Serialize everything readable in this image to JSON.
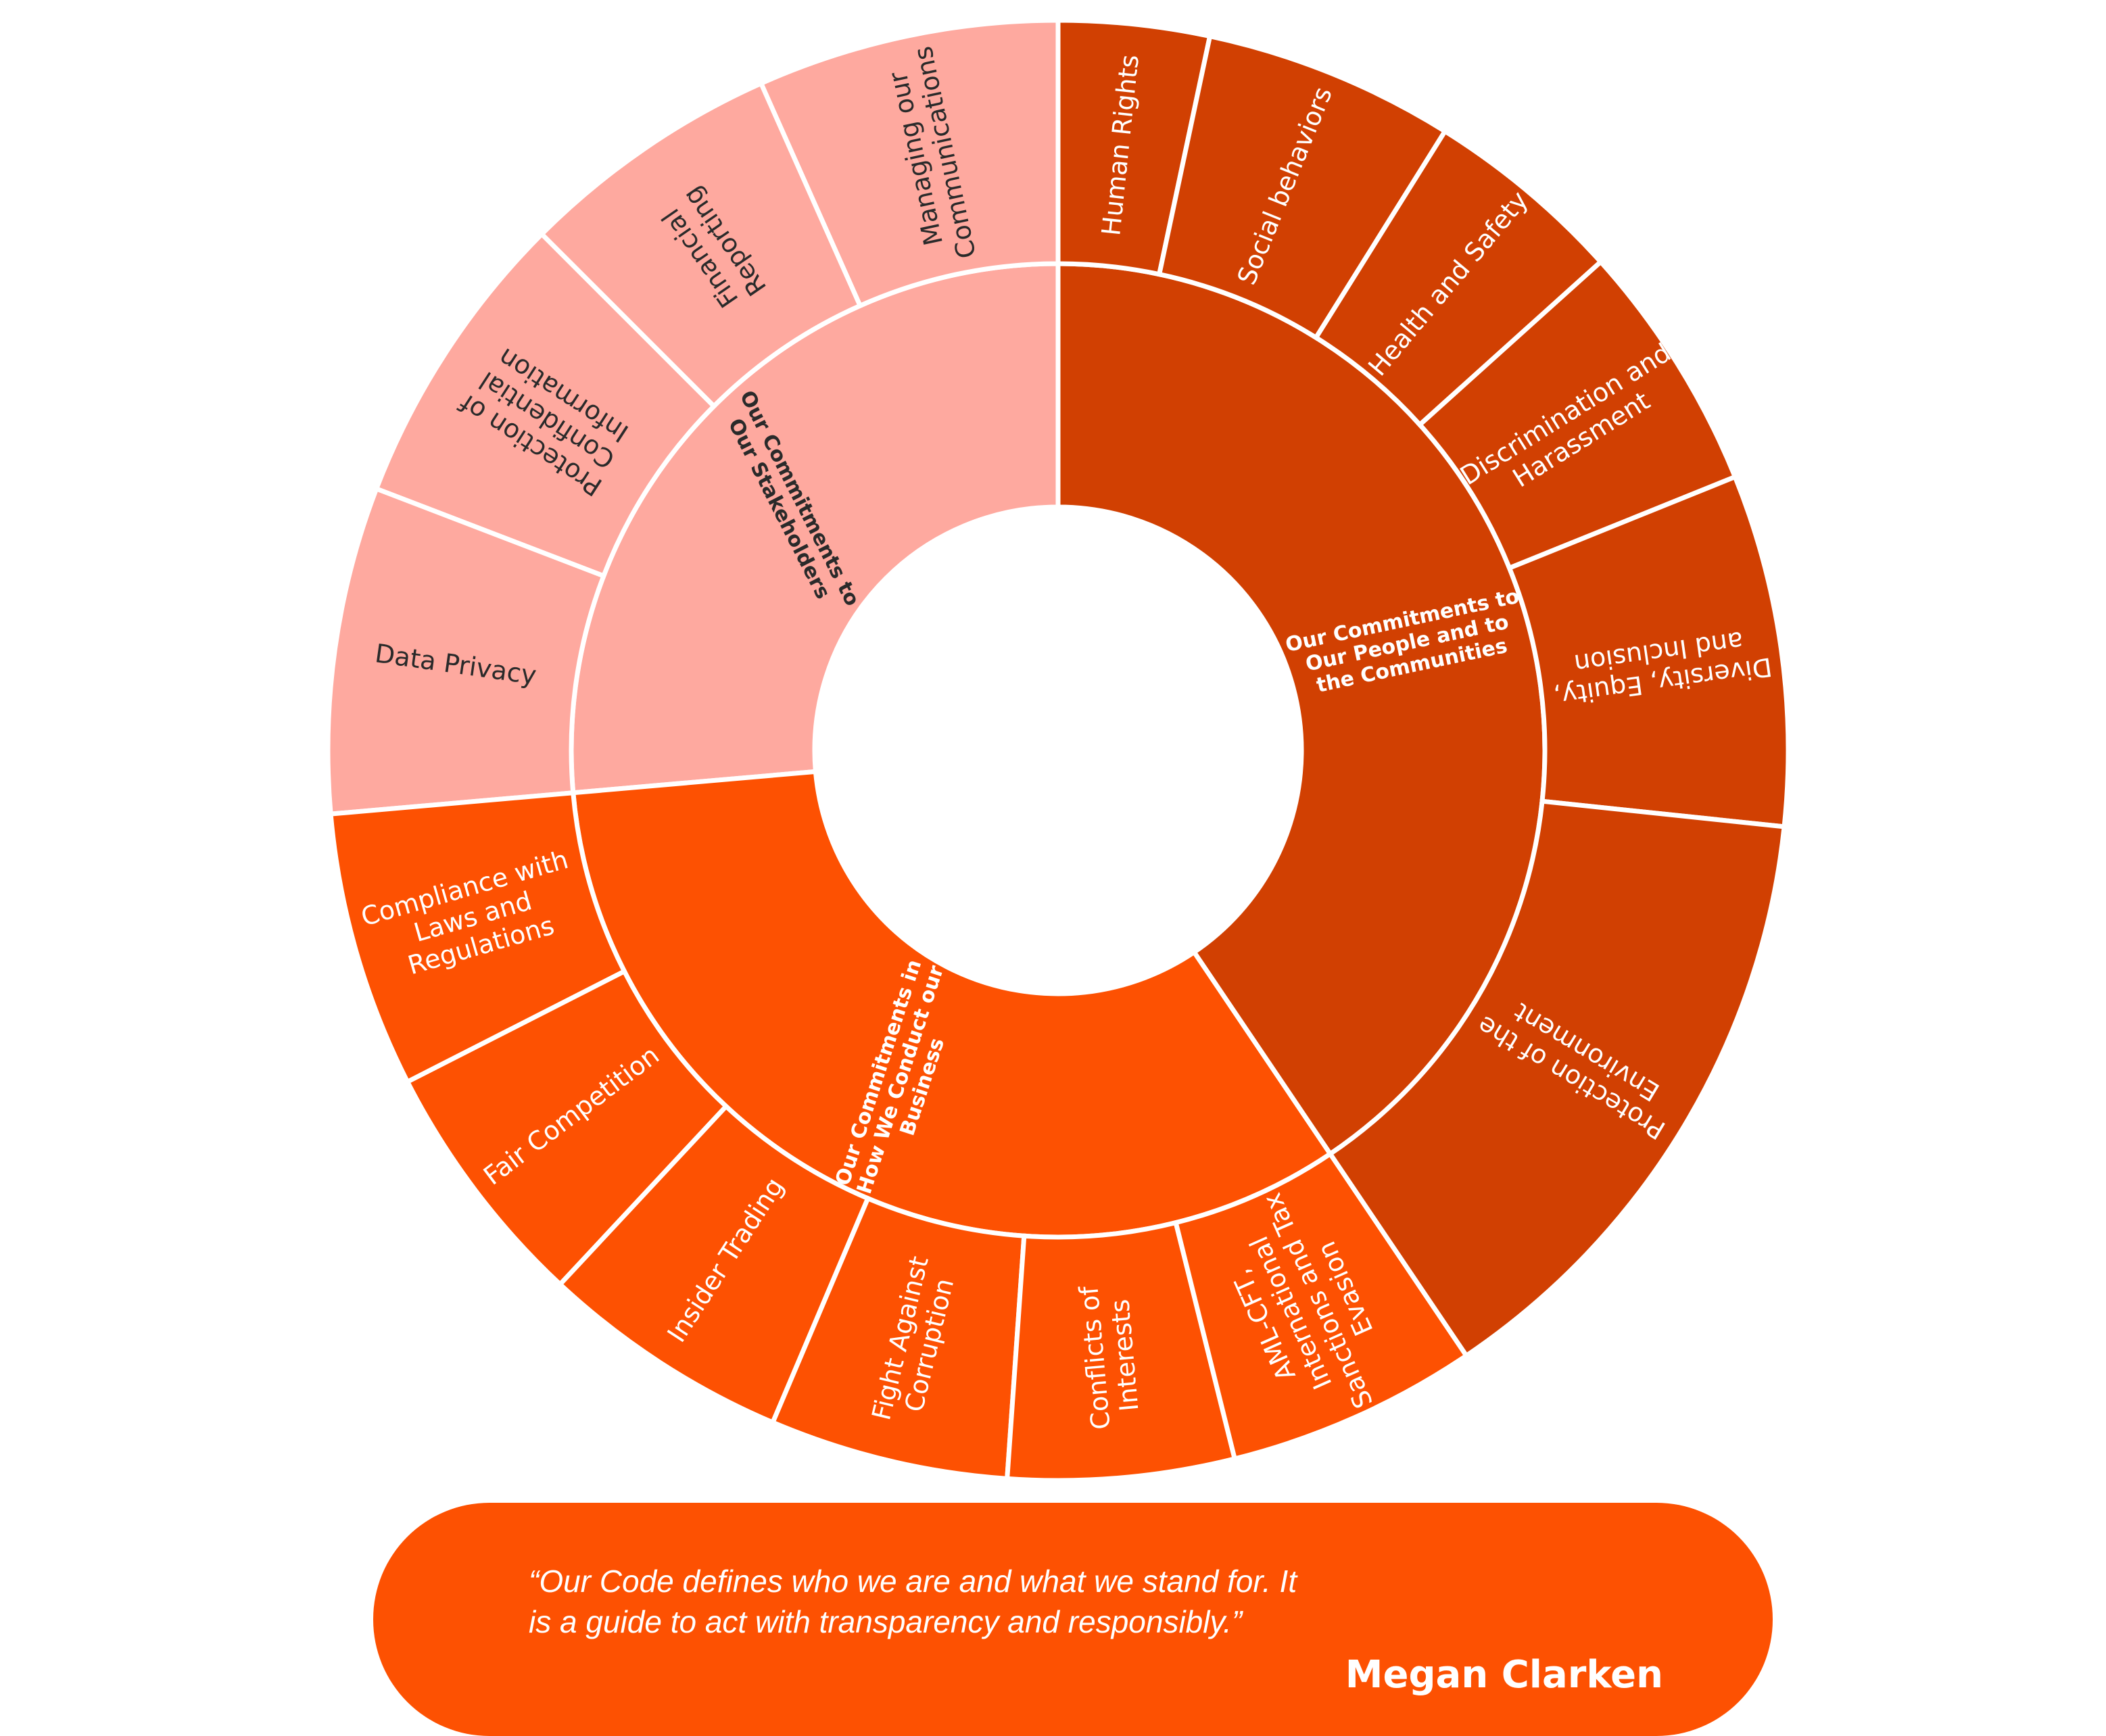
{
  "diagram": {
    "type": "sunburst",
    "colors": {
      "stakeholders": "#fea99f",
      "people": "#d14002",
      "business": "#fd5102",
      "stakeholders_text": "#2a2a2a",
      "people_text": "#ffffff",
      "business_text": "#ffffff",
      "divider": "#ffffff"
    },
    "groups": [
      {
        "id": "stakeholders",
        "label_lines": [
          "Our Commitments to",
          "Our Stakeholders"
        ],
        "items": [
          {
            "lines": [
              "Managing our",
              "Communications"
            ]
          },
          {
            "lines": [
              "Financial",
              "Reporting"
            ]
          },
          {
            "lines": [
              "Protection of",
              "Confidential",
              "Information"
            ]
          },
          {
            "lines": [
              "Data Privacy"
            ]
          }
        ]
      },
      {
        "id": "business",
        "label_lines": [
          "Our Commitments in",
          "How We Conduct our",
          "Business"
        ],
        "items": [
          {
            "lines": [
              "Compliance with",
              "Laws and",
              "Regulations"
            ]
          },
          {
            "lines": [
              "Fair Competition"
            ]
          },
          {
            "lines": [
              "Insider Trading"
            ]
          },
          {
            "lines": [
              "Fight Against",
              "Corruption"
            ]
          },
          {
            "lines": [
              "Conflicts of",
              "Interests"
            ]
          },
          {
            "lines": [
              "AML-CFT,",
              "International",
              "Sanctions and Tax",
              "Evasion"
            ]
          }
        ]
      },
      {
        "id": "people",
        "label_lines": [
          "Our Commitments to",
          "Our People and to",
          "the Communities"
        ],
        "items": [
          {
            "lines": [
              "Human Rights"
            ]
          },
          {
            "lines": [
              "Social behaviors"
            ]
          },
          {
            "lines": [
              "Health and Safety"
            ]
          },
          {
            "lines": [
              "Discrimination and",
              "Harassment"
            ]
          },
          {
            "lines": [
              "Diversity, Equity,",
              "and Inclusion"
            ]
          },
          {
            "lines": [
              "Protection of the",
              "Environment"
            ]
          }
        ]
      }
    ]
  },
  "quote": {
    "line1": "“Our Code defines who we are and what we stand for. It",
    "line2": "is a guide to act with transparency and responsibly.”",
    "author": "Megan Clarken"
  }
}
